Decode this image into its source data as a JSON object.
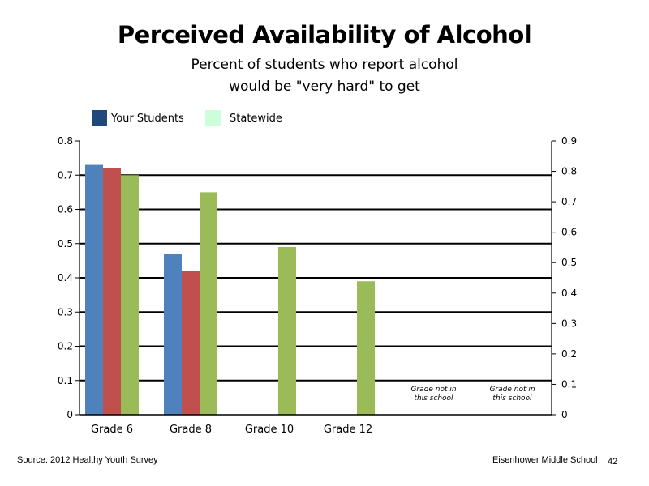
{
  "page": {
    "title": "Perceived Availability of Alcohol",
    "subtitle_line1": "Percent of students who report alcohol",
    "subtitle_line2": "would be \"very hard\" to get",
    "source": "Source: 2012 Healthy Youth Survey",
    "school": "Eisenhower Middle  School",
    "page_number": "42"
  },
  "legend": [
    {
      "label": "Your Students",
      "color": "#1f497d"
    },
    {
      "label": "Statewide",
      "color": "#ccffd9"
    }
  ],
  "chart_data": {
    "type": "bar",
    "categories": [
      "Grade 6",
      "Grade 8",
      "Grade 10",
      "Grade 12",
      "",
      ""
    ],
    "series": [
      {
        "color": "#4f81bd",
        "values": [
          0.73,
          0.47,
          null,
          null,
          null,
          null
        ]
      },
      {
        "color": "#c0504d",
        "values": [
          0.72,
          0.42,
          null,
          null,
          null,
          null
        ]
      },
      {
        "color": "#9bbb59",
        "values": [
          0.7,
          0.65,
          0.49,
          0.39,
          null,
          null
        ]
      }
    ],
    "y_left": {
      "ylim": [
        0,
        0.8
      ],
      "ticks": [
        "0",
        "0.1",
        "0.2",
        "0.3",
        "0.4",
        "0.5",
        "0.6",
        "0.7",
        "0.8"
      ]
    },
    "y_right": {
      "ylim": [
        0,
        0.9
      ],
      "ticks": [
        "0",
        "0.1",
        "0.2",
        "0.3",
        "0.4",
        "0.5",
        "0.6",
        "0.7",
        "0.8",
        "0.9"
      ]
    },
    "gridlines": [
      0.1,
      0.2,
      0.3,
      0.4,
      0.5,
      0.6,
      0.7
    ],
    "annotations": [
      {
        "category_index": 4,
        "line1": "Grade not in",
        "line2": "this school"
      },
      {
        "category_index": 5,
        "line1": "Grade not in",
        "line2": "this school"
      }
    ]
  }
}
